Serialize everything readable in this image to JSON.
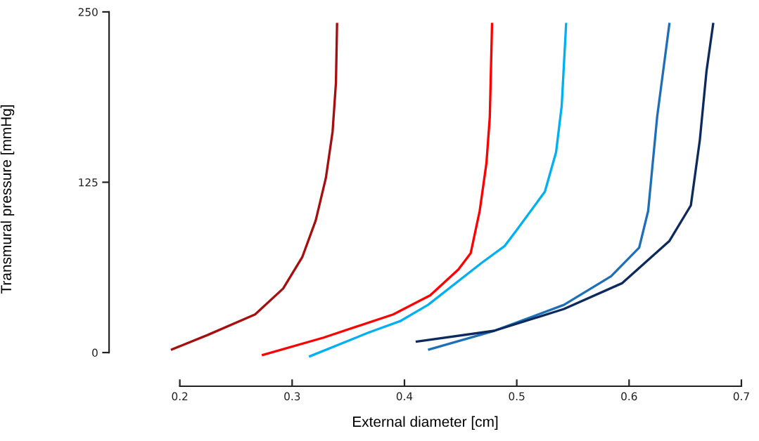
{
  "chart_data": {
    "type": "line",
    "xlabel": "External diameter [cm]",
    "ylabel": "Transmural pressure [mmHg]",
    "xlim": [
      0.137,
      0.7
    ],
    "ylim": [
      -24.7,
      250
    ],
    "xticks": [
      0.2,
      0.3,
      0.4,
      0.5,
      0.6,
      0.7
    ],
    "yticks": [
      0,
      125,
      250
    ],
    "grid": false,
    "marker": "none",
    "line_style": "solid",
    "series": [
      {
        "color": "#a50f0f",
        "x": [
          0.192,
          0.225,
          0.267,
          0.292,
          0.309,
          0.321,
          0.33,
          0.336,
          0.339,
          0.34
        ],
        "values": [
          2,
          13,
          28,
          47,
          70,
          97,
          128,
          162,
          198,
          242
        ]
      },
      {
        "color": "#ff0000",
        "x": [
          0.273,
          0.328,
          0.39,
          0.423,
          0.448,
          0.459,
          0.467,
          0.473,
          0.476,
          0.478
        ],
        "values": [
          -2,
          11,
          28,
          42,
          61,
          73,
          104,
          139,
          173,
          242
        ]
      },
      {
        "color": "#00b0f0",
        "x": [
          0.315,
          0.369,
          0.396,
          0.421,
          0.469,
          0.489,
          0.5,
          0.525,
          0.535,
          0.54,
          0.544
        ],
        "values": [
          -3,
          15,
          23,
          35,
          66,
          78,
          90,
          118,
          147,
          181,
          242
        ]
      },
      {
        "color": "#1f6fb8",
        "x": [
          0.421,
          0.48,
          0.542,
          0.584,
          0.609,
          0.617,
          0.625,
          0.636
        ],
        "values": [
          2,
          16,
          35,
          56,
          77,
          104,
          173,
          242
        ]
      },
      {
        "color": "#0d2a5e",
        "x": [
          0.41,
          0.48,
          0.542,
          0.594,
          0.636,
          0.655,
          0.663,
          0.669,
          0.675
        ],
        "values": [
          8,
          16,
          32,
          51,
          82,
          108,
          156,
          207,
          242
        ]
      }
    ]
  }
}
